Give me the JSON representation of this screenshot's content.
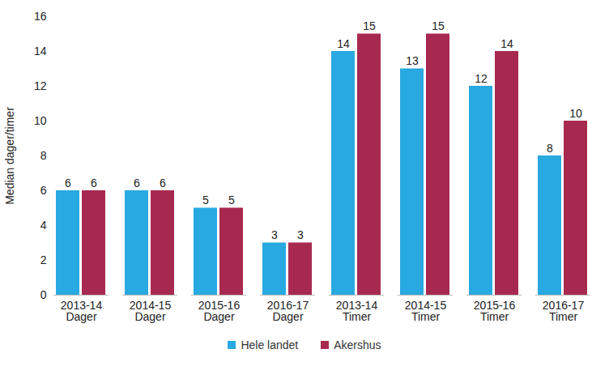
{
  "chart_data": {
    "type": "bar",
    "y_label": "Median dager/timer",
    "categories": [
      "2013-14\nDager",
      "2014-15\nDager",
      "2015-16\nDager",
      "2016-17\nDager",
      "2013-14\nTimer",
      "2014-15\nTimer",
      "2015-16\nTimer",
      "2016-17\nTimer"
    ],
    "series": [
      {
        "name": "Hele landet",
        "color": "#29A9E1",
        "values": [
          6,
          6,
          5,
          3,
          14,
          13,
          12,
          8
        ]
      },
      {
        "name": "Akershus",
        "color": "#A8294F",
        "values": [
          6,
          6,
          5,
          3,
          15,
          15,
          14,
          10
        ]
      }
    ],
    "ylim": [
      0,
      16
    ],
    "yticks": [
      0,
      2,
      4,
      6,
      8,
      10,
      12,
      14,
      16
    ],
    "grid": false,
    "legend": "bottom",
    "data_labels": true
  }
}
